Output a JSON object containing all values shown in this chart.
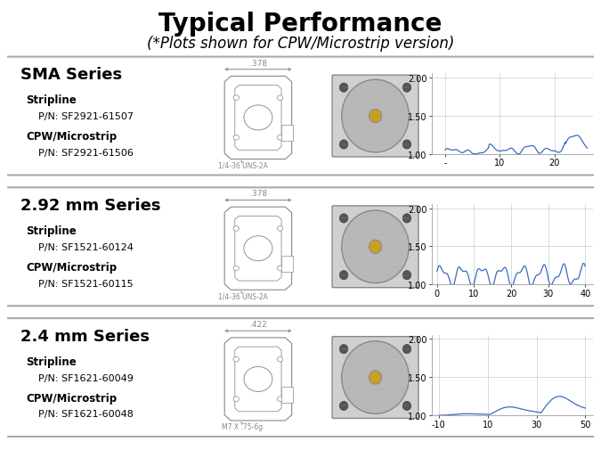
{
  "title": "Typical Performance",
  "subtitle": "(*Plots shown for CPW/Microstrip version)",
  "bg": "#ffffff",
  "border_color": "#999999",
  "line_color": "#3a6bbf",
  "grid_color": "#cccccc",
  "draw_color": "#888888",
  "title_fs": 20,
  "subtitle_fs": 12,
  "series_fs": 13,
  "label_bold_fs": 8.5,
  "label_fs": 8.0,
  "tick_fs": 7,
  "dim_fs": 6.5,
  "thread_fs": 5.5,
  "rows": [
    {
      "series": "SMA Series",
      "b1": "Stripline",
      "p1": "    P/N: SF2921-61507",
      "b2": "CPW/Microstrip",
      "p2": "    P/N: SF2921-61506",
      "dim": ".378",
      "thread": "1/4-36 UNS-2A",
      "xlim": [
        -2.5,
        27
      ],
      "ylim": [
        1.0,
        2.05
      ],
      "xticks": [
        0,
        10,
        20
      ],
      "xlabels": [
        "-",
        "10",
        "20"
      ],
      "yticks": [
        1.0,
        1.5,
        2.0
      ],
      "ylabels": [
        "1.00",
        "1.50",
        "2.00"
      ]
    },
    {
      "series": "2.92 mm Series",
      "b1": "Stripline",
      "p1": "    P/N: SF1521-60124",
      "b2": "CPW/Microstrip",
      "p2": "    P/N: SF1521-60115",
      "dim": ".378",
      "thread": "1/4-36 UNS-2A",
      "xlim": [
        -1.5,
        42
      ],
      "ylim": [
        1.0,
        2.05
      ],
      "xticks": [
        0,
        10,
        20,
        30,
        40
      ],
      "xlabels": [
        "0",
        "10",
        "20",
        "30",
        "40"
      ],
      "yticks": [
        1.0,
        1.5,
        2.0
      ],
      "ylabels": [
        "1.00",
        "1.50",
        "2.00"
      ]
    },
    {
      "series": "2.4 mm Series",
      "b1": "Stripline",
      "p1": "    P/N: SF1621-60049",
      "b2": "CPW/Microstrip",
      "p2": "    P/N: SF1621-60048",
      "dim": ".422",
      "thread": "M7 X .75-6g",
      "xlim": [
        -13,
        53
      ],
      "ylim": [
        1.0,
        2.05
      ],
      "xticks": [
        -10,
        10,
        30,
        50
      ],
      "xlabels": [
        "-10",
        "10",
        "30",
        "50"
      ],
      "yticks": [
        1.0,
        1.5,
        2.0
      ],
      "ylabels": [
        "1.00",
        "1.50",
        "2.00"
      ]
    }
  ]
}
